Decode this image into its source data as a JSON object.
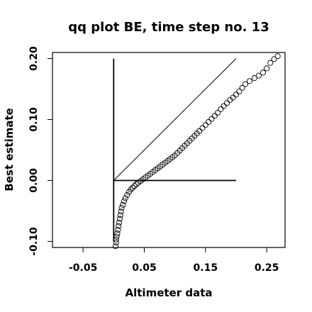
{
  "chart_data": {
    "type": "scatter",
    "title": "qq plot BE, time step no. 13",
    "xlabel": "Altimeter data",
    "ylabel": "Best estimate",
    "xlim": [
      -0.1,
      0.28
    ],
    "ylim": [
      -0.11,
      0.21
    ],
    "x_ticks": [
      -0.05,
      0.05,
      0.15,
      0.25
    ],
    "x_tick_labels": [
      "-0.05",
      "0.05",
      "0.15",
      "0.25"
    ],
    "y_ticks": [
      -0.1,
      0.0,
      0.1,
      0.2
    ],
    "y_tick_labels": [
      "-0.10",
      "0.00",
      "0.10",
      "0.20"
    ],
    "grid": false,
    "marker": "open-circle",
    "reference_lines": [
      {
        "name": "identity",
        "from": [
          0.0,
          0.0
        ],
        "to": [
          0.2,
          0.2
        ]
      },
      {
        "name": "vertical",
        "from": [
          0.0,
          -0.1
        ],
        "to": [
          0.0,
          0.2
        ]
      },
      {
        "name": "horizontal",
        "from": [
          0.0,
          0.0
        ],
        "to": [
          0.2,
          0.0
        ]
      }
    ],
    "points": [
      [
        0.003,
        -0.108
      ],
      [
        0.004,
        -0.102
      ],
      [
        0.004,
        -0.097
      ],
      [
        0.005,
        -0.092
      ],
      [
        0.006,
        -0.087
      ],
      [
        0.007,
        -0.081
      ],
      [
        0.008,
        -0.075
      ],
      [
        0.009,
        -0.069
      ],
      [
        0.01,
        -0.063
      ],
      [
        0.011,
        -0.057
      ],
      [
        0.012,
        -0.051
      ],
      [
        0.013,
        -0.045
      ],
      [
        0.015,
        -0.04
      ],
      [
        0.017,
        -0.034
      ],
      [
        0.019,
        -0.029
      ],
      [
        0.022,
        -0.024
      ],
      [
        0.025,
        -0.019
      ],
      [
        0.028,
        -0.015
      ],
      [
        0.031,
        -0.012
      ],
      [
        0.034,
        -0.009
      ],
      [
        0.037,
        -0.006
      ],
      [
        0.04,
        -0.004
      ],
      [
        0.044,
        -0.001
      ],
      [
        0.048,
        0.002
      ],
      [
        0.052,
        0.005
      ],
      [
        0.056,
        0.008
      ],
      [
        0.06,
        0.011
      ],
      [
        0.064,
        0.014
      ],
      [
        0.068,
        0.017
      ],
      [
        0.072,
        0.02
      ],
      [
        0.076,
        0.023
      ],
      [
        0.08,
        0.026
      ],
      [
        0.084,
        0.029
      ],
      [
        0.088,
        0.032
      ],
      [
        0.092,
        0.035
      ],
      [
        0.096,
        0.038
      ],
      [
        0.1,
        0.041
      ],
      [
        0.104,
        0.045
      ],
      [
        0.108,
        0.049
      ],
      [
        0.112,
        0.053
      ],
      [
        0.116,
        0.057
      ],
      [
        0.12,
        0.061
      ],
      [
        0.124,
        0.065
      ],
      [
        0.128,
        0.069
      ],
      [
        0.132,
        0.073
      ],
      [
        0.136,
        0.077
      ],
      [
        0.14,
        0.081
      ],
      [
        0.145,
        0.086
      ],
      [
        0.15,
        0.091
      ],
      [
        0.155,
        0.096
      ],
      [
        0.16,
        0.101
      ],
      [
        0.165,
        0.106
      ],
      [
        0.17,
        0.111
      ],
      [
        0.175,
        0.117
      ],
      [
        0.18,
        0.122
      ],
      [
        0.185,
        0.127
      ],
      [
        0.19,
        0.132
      ],
      [
        0.195,
        0.136
      ],
      [
        0.2,
        0.141
      ],
      [
        0.205,
        0.146
      ],
      [
        0.21,
        0.152
      ],
      [
        0.215,
        0.158
      ],
      [
        0.222,
        0.163
      ],
      [
        0.23,
        0.168
      ],
      [
        0.237,
        0.172
      ],
      [
        0.244,
        0.177
      ],
      [
        0.25,
        0.184
      ],
      [
        0.256,
        0.193
      ],
      [
        0.262,
        0.199
      ],
      [
        0.268,
        0.204
      ]
    ]
  }
}
